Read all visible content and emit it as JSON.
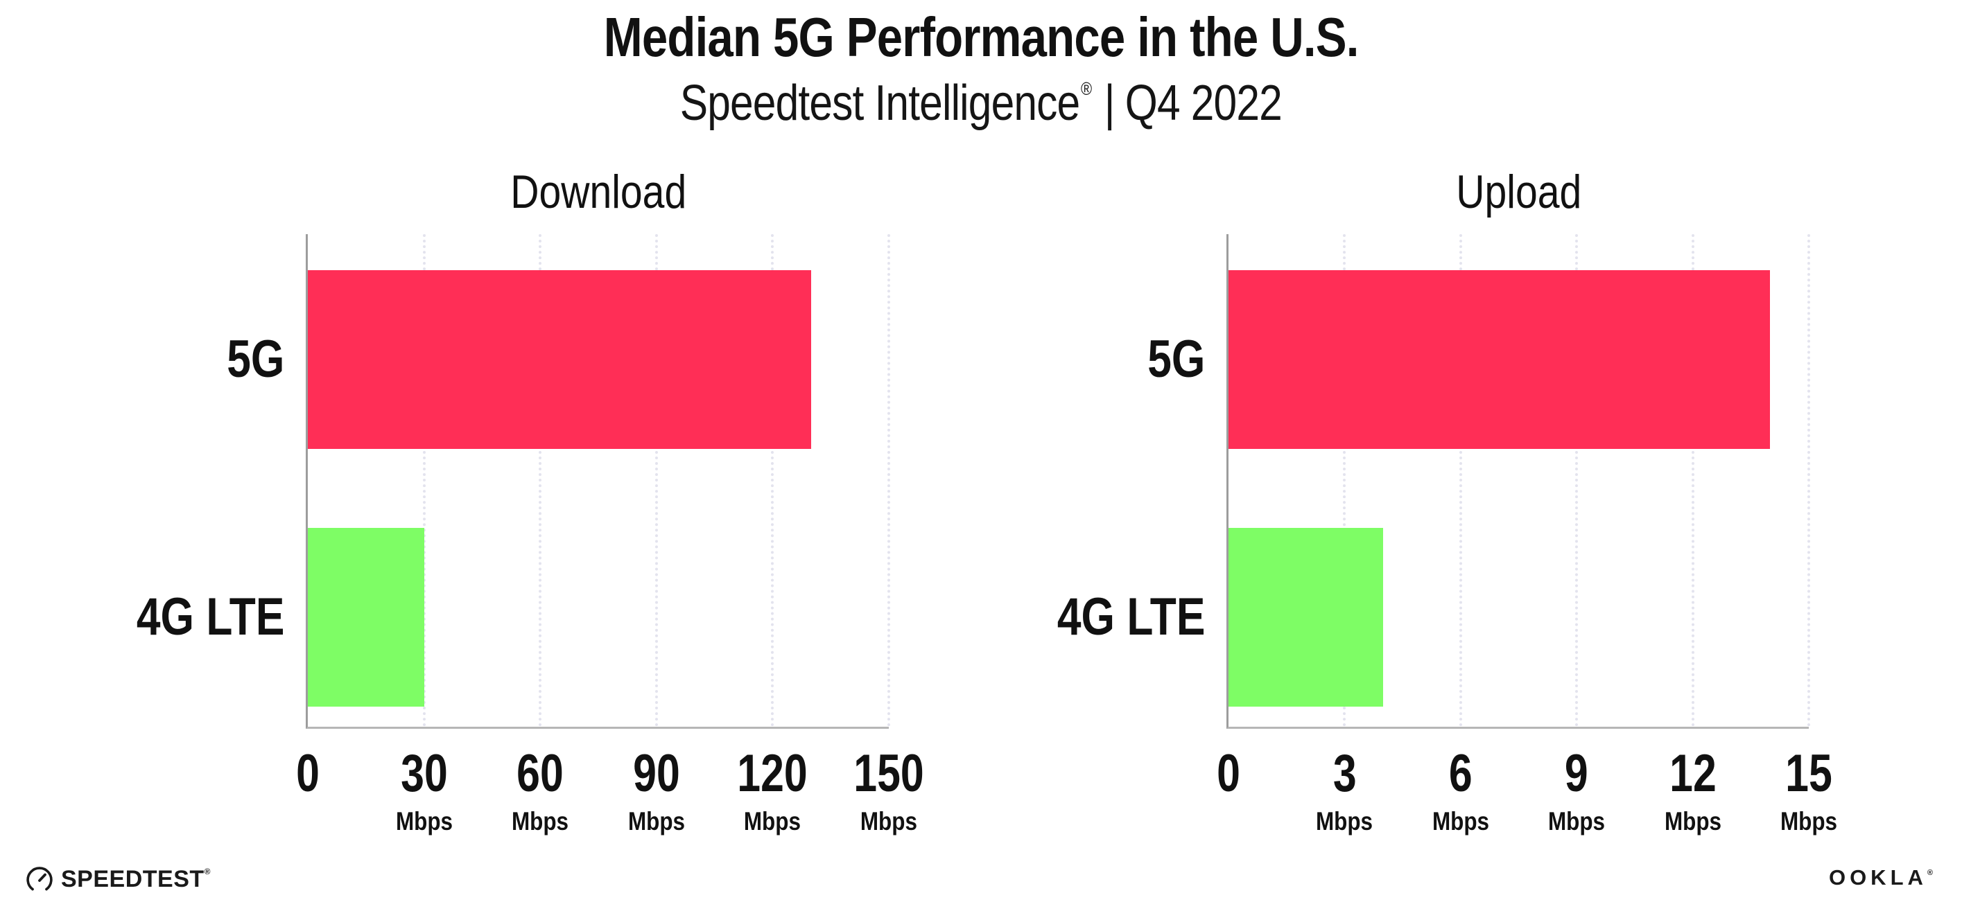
{
  "header": {
    "title": "Median 5G Performance in the U.S.",
    "subtitle": {
      "brand": "Speedtest Intelligence",
      "registered_mark": "®",
      "separator": "|",
      "period": "Q4 2022"
    }
  },
  "chart_data": [
    {
      "type": "bar",
      "orientation": "horizontal",
      "title": "Download",
      "categories": [
        "5G",
        "4G LTE"
      ],
      "values": [
        130,
        30
      ],
      "unit": "Mbps",
      "xlim": [
        0,
        150
      ],
      "xticks": [
        0,
        30,
        60,
        90,
        120,
        150
      ],
      "grid": "vertical-dotted",
      "bar_colors": [
        "#FF2E56",
        "#7EFD65"
      ]
    },
    {
      "type": "bar",
      "orientation": "horizontal",
      "title": "Upload",
      "categories": [
        "5G",
        "4G LTE"
      ],
      "values": [
        14,
        4
      ],
      "unit": "Mbps",
      "xlim": [
        0,
        15
      ],
      "xticks": [
        0,
        3,
        6,
        9,
        12,
        15
      ],
      "grid": "vertical-dotted",
      "bar_colors": [
        "#FF2E56",
        "#7EFD65"
      ]
    }
  ],
  "footer": {
    "speedtest_logo_text": "SPEEDTEST",
    "speedtest_mark": "®",
    "ookla_logo_text": "OOKLA",
    "ookla_mark": "®"
  },
  "colors": {
    "bar_5g": "#FF2E56",
    "bar_4g_lte": "#7EFD65",
    "axis": "#9d9d9d",
    "gridline": "#e3e3ee",
    "text": "#111111",
    "background": "#ffffff"
  }
}
